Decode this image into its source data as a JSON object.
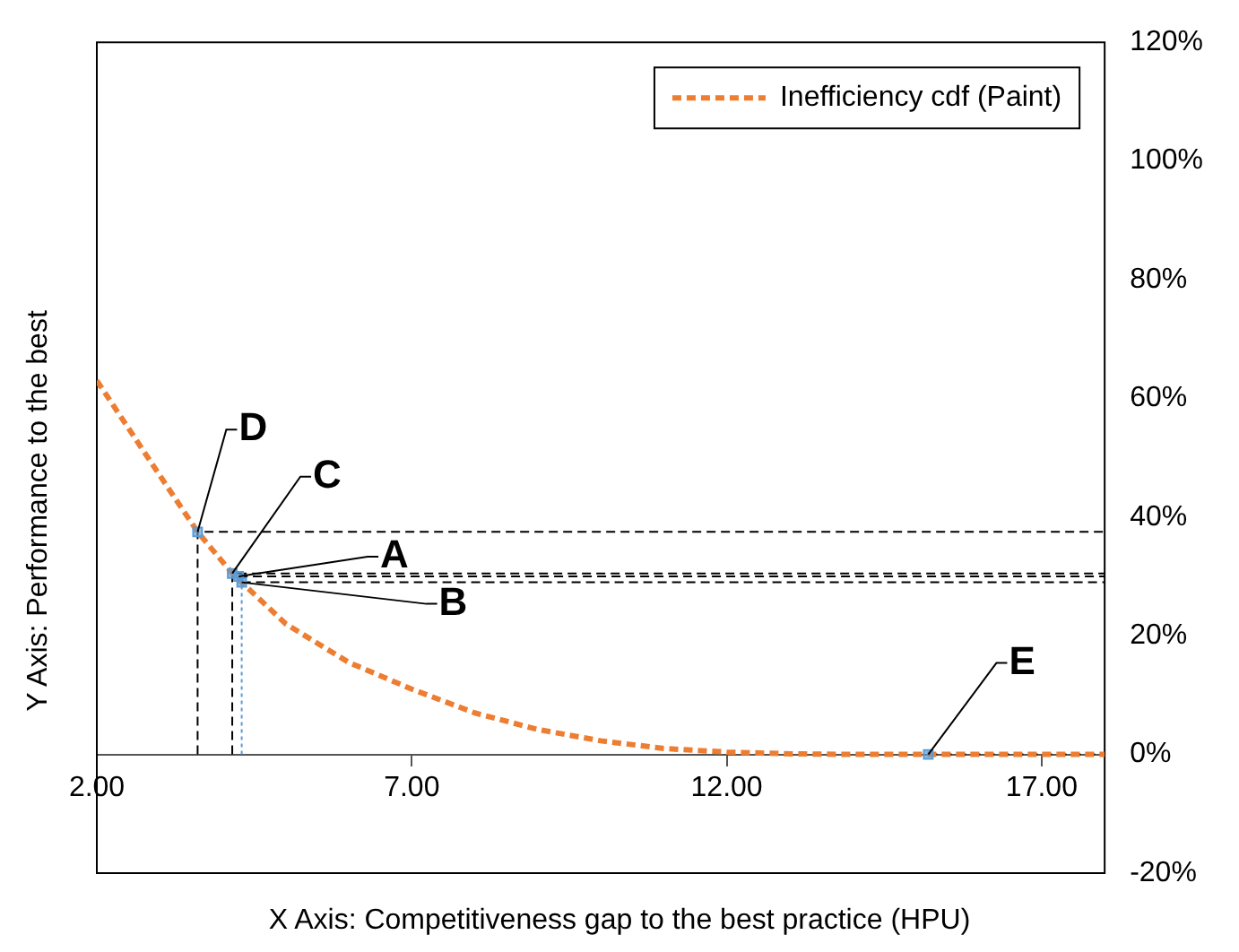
{
  "chart_data": {
    "type": "line",
    "xlabel": "X Axis: Competitiveness gap to the best practice (HPU)",
    "ylabel": "Y Axis: Performance to the best",
    "xlim": [
      2,
      18
    ],
    "xticks": [
      {
        "value": 2,
        "label": "2.00"
      },
      {
        "value": 7,
        "label": "7.00"
      },
      {
        "value": 12,
        "label": "12.00"
      },
      {
        "value": 17,
        "label": "17.00"
      }
    ],
    "ylim": [
      -20,
      120
    ],
    "yticks": [
      {
        "value": -20,
        "label": "-20%"
      },
      {
        "value": 0,
        "label": "0%"
      },
      {
        "value": 20,
        "label": "20%"
      },
      {
        "value": 40,
        "label": "40%"
      },
      {
        "value": 60,
        "label": "60%"
      },
      {
        "value": 80,
        "label": "80%"
      },
      {
        "value": 100,
        "label": "100%"
      },
      {
        "value": 120,
        "label": "120%"
      }
    ],
    "legend": "top right",
    "series": [
      {
        "name": "Inefficiency cdf (Paint)",
        "type": "line",
        "color": "#ed7d31",
        "line_style": "dashed",
        "marker": "none",
        "x": [
          2,
          2.5,
          3,
          3.6,
          4.15,
          5,
          6,
          7,
          8,
          9,
          10,
          11,
          12,
          13,
          14,
          16,
          18
        ],
        "values": [
          63,
          55,
          47,
          37.5,
          30.5,
          22,
          15.5,
          11,
          7,
          4.2,
          2.3,
          1,
          0.4,
          0.1,
          0,
          0,
          0
        ]
      },
      {
        "type": "line",
        "color": "#000000",
        "line_style": "dashed",
        "marker": "none",
        "x": [
          3.6,
          3.6,
          18
        ],
        "values": [
          0,
          37.5,
          37.5
        ]
      },
      {
        "type": "line",
        "color": "#000000",
        "line_style": "dashed",
        "marker": "none",
        "x": [
          4.15,
          4.15,
          18
        ],
        "values": [
          0,
          30.5,
          30.5
        ]
      },
      {
        "type": "line",
        "color": "#000000",
        "line_style": "dashed",
        "marker": "none",
        "x": [
          4.25,
          18
        ],
        "values": [
          30,
          30
        ]
      },
      {
        "type": "line",
        "color": "#000000",
        "line_style": "dashed",
        "marker": "none",
        "x": [
          4.3,
          18
        ],
        "values": [
          29,
          29
        ]
      },
      {
        "type": "line",
        "color": "#5b9bd5",
        "line_style": "dotted",
        "marker": "none",
        "x": [
          4.3,
          4.3
        ],
        "values": [
          0,
          29
        ]
      },
      {
        "type": "line",
        "color": "#000000",
        "line_style": "dashed",
        "marker": "none",
        "x": [
          15.2,
          18
        ],
        "values": [
          0,
          0
        ]
      },
      {
        "type": "scatter",
        "color": "#5b9bd5",
        "marker": "square",
        "x": [
          3.6,
          4.15,
          4.25,
          4.3,
          15.2
        ],
        "values": [
          37.5,
          30.5,
          30,
          29,
          0
        ]
      }
    ],
    "annotations": [
      {
        "text": "A",
        "x": 4.25,
        "y": 30
      },
      {
        "text": "B",
        "x": 4.3,
        "y": 29
      },
      {
        "text": "C",
        "x": 4.15,
        "y": 30.5
      },
      {
        "text": "D",
        "x": 3.6,
        "y": 37.5
      },
      {
        "text": "E",
        "x": 15.2,
        "y": 0
      }
    ]
  }
}
